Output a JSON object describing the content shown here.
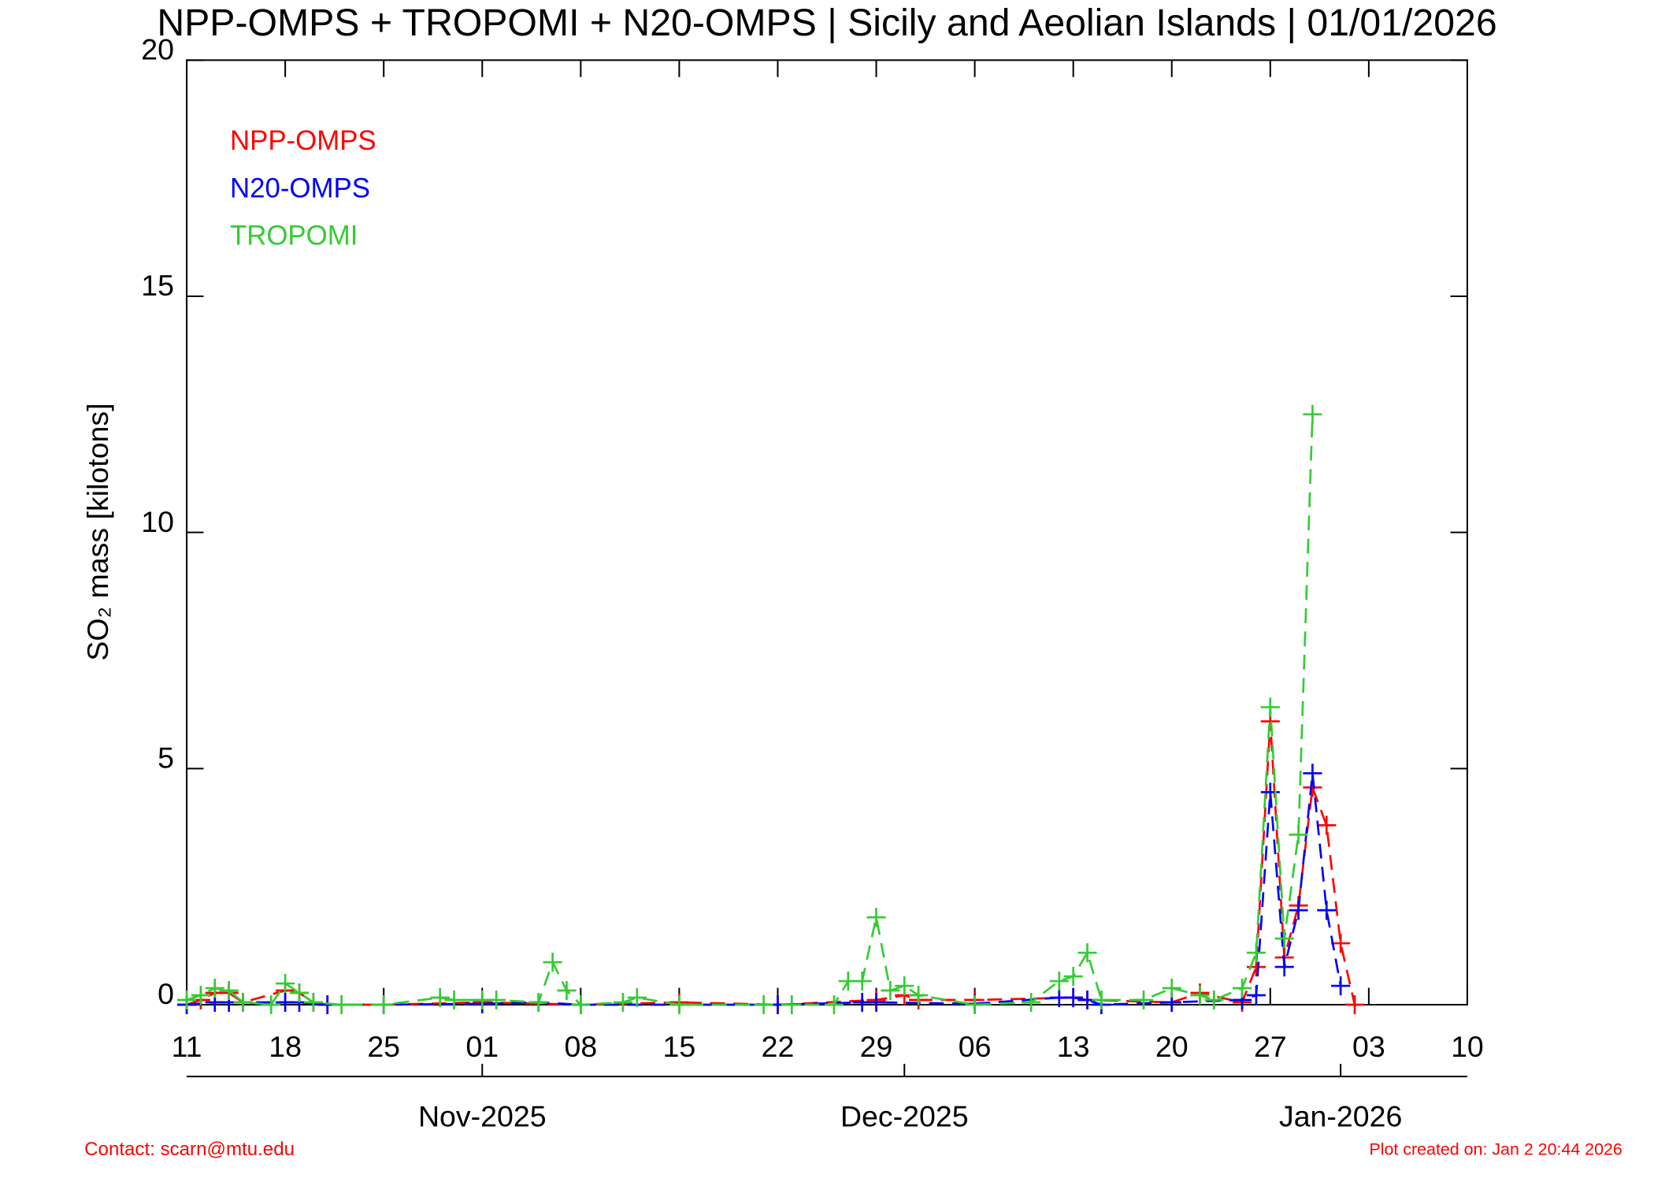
{
  "chart_data": {
    "type": "line",
    "title": "NPP-OMPS + TROPOMI + N20-OMPS | Sicily and Aeolian Islands | 01/01/2026",
    "y_label": "SO₂ mass [kilotons]",
    "xlim": [
      "2025-10-11",
      "2026-01-10"
    ],
    "xticks": [
      {
        "value": "2025-10-11",
        "label": "11"
      },
      {
        "value": "2025-10-18",
        "label": "18"
      },
      {
        "value": "2025-10-25",
        "label": "25"
      },
      {
        "value": "2025-11-01",
        "label": "01"
      },
      {
        "value": "2025-11-08",
        "label": "08"
      },
      {
        "value": "2025-11-15",
        "label": "15"
      },
      {
        "value": "2025-11-22",
        "label": "22"
      },
      {
        "value": "2025-11-29",
        "label": "29"
      },
      {
        "value": "2025-12-06",
        "label": "06"
      },
      {
        "value": "2025-12-13",
        "label": "13"
      },
      {
        "value": "2025-12-20",
        "label": "20"
      },
      {
        "value": "2025-12-27",
        "label": "27"
      },
      {
        "value": "2026-01-03",
        "label": "03"
      },
      {
        "value": "2026-01-10",
        "label": "10"
      }
    ],
    "month_ticks": [
      {
        "value": "2025-11-01",
        "label": "Nov-2025"
      },
      {
        "value": "2025-12-01",
        "label": "Dec-2025"
      },
      {
        "value": "2026-01-01",
        "label": "Jan-2026"
      }
    ],
    "ylim": [
      0,
      20
    ],
    "yticks": [
      0,
      5,
      10,
      15,
      20
    ],
    "legend": "upper left",
    "series": [
      {
        "name": "NPP-OMPS",
        "color": "#ff0000",
        "x": [
          "2025-10-11",
          "2025-10-12",
          "2025-10-13",
          "2025-10-14",
          "2025-10-15",
          "2025-10-18",
          "2025-10-19",
          "2025-10-20",
          "2025-10-21",
          "2025-10-25",
          "2025-11-01",
          "2025-11-08",
          "2025-11-15",
          "2025-11-22",
          "2025-11-29",
          "2025-12-01",
          "2025-12-02",
          "2025-12-06",
          "2025-12-13",
          "2025-12-14",
          "2025-12-20",
          "2025-12-22",
          "2025-12-25",
          "2025-12-26",
          "2025-12-27",
          "2025-12-28",
          "2025-12-29",
          "2025-12-30",
          "2025-12-31",
          "2026-01-01",
          "2026-01-02"
        ],
        "values": [
          0,
          0.1,
          0.25,
          0.25,
          0.05,
          0.3,
          0.25,
          0.05,
          0,
          0,
          0.05,
          0,
          0.05,
          0,
          0.1,
          0.2,
          0.1,
          0.1,
          0.15,
          0.1,
          0.05,
          0.25,
          0.05,
          0.8,
          6.0,
          1.0,
          2.1,
          4.6,
          3.8,
          1.3,
          0
        ]
      },
      {
        "name": "N20-OMPS",
        "color": "#0000ff",
        "x": [
          "2025-10-11",
          "2025-10-13",
          "2025-10-14",
          "2025-10-18",
          "2025-10-19",
          "2025-10-21",
          "2025-10-25",
          "2025-11-01",
          "2025-11-05",
          "2025-11-08",
          "2025-11-22",
          "2025-11-28",
          "2025-11-29",
          "2025-12-06",
          "2025-12-12",
          "2025-12-13",
          "2025-12-14",
          "2025-12-15",
          "2025-12-20",
          "2025-12-25",
          "2025-12-26",
          "2025-12-27",
          "2025-12-28",
          "2025-12-29",
          "2025-12-30",
          "2025-12-31",
          "2026-01-01"
        ],
        "values": [
          0,
          0.05,
          0.05,
          0.05,
          0.05,
          0,
          0,
          0.02,
          0.05,
          0,
          0,
          0.05,
          0.05,
          0.02,
          0.15,
          0.15,
          0.1,
          0,
          0.05,
          0.1,
          0.2,
          4.5,
          0.8,
          2.0,
          4.9,
          2.0,
          0.4
        ]
      },
      {
        "name": "TROPOMI",
        "color": "#33cc33",
        "x": [
          "2025-10-11",
          "2025-10-12",
          "2025-10-13",
          "2025-10-14",
          "2025-10-15",
          "2025-10-17",
          "2025-10-18",
          "2025-10-19",
          "2025-10-20",
          "2025-10-22",
          "2025-10-25",
          "2025-10-29",
          "2025-10-30",
          "2025-11-01",
          "2025-11-02",
          "2025-11-05",
          "2025-11-06",
          "2025-11-07",
          "2025-11-08",
          "2025-11-11",
          "2025-11-12",
          "2025-11-15",
          "2025-11-21",
          "2025-11-23",
          "2025-11-26",
          "2025-11-27",
          "2025-11-28",
          "2025-11-29",
          "2025-11-30",
          "2025-12-01",
          "2025-12-02",
          "2025-12-06",
          "2025-12-10",
          "2025-12-12",
          "2025-12-13",
          "2025-12-14",
          "2025-12-15",
          "2025-12-18",
          "2025-12-20",
          "2025-12-22",
          "2025-12-23",
          "2025-12-25",
          "2025-12-26",
          "2025-12-27",
          "2025-12-28",
          "2025-12-29",
          "2025-12-30"
        ],
        "values": [
          0.1,
          0.2,
          0.35,
          0.3,
          0.05,
          0,
          0.45,
          0.25,
          0.05,
          0,
          0,
          0.15,
          0.1,
          0.1,
          0.1,
          0.05,
          0.9,
          0.3,
          0,
          0.05,
          0.15,
          0,
          0,
          0,
          0,
          0.5,
          0.5,
          1.85,
          0.3,
          0.4,
          0.2,
          0,
          0.05,
          0.5,
          0.6,
          1.1,
          0.1,
          0.1,
          0.35,
          0.2,
          0.1,
          0.35,
          1.1,
          6.3,
          1.4,
          3.6,
          12.5
        ]
      }
    ],
    "footer_left": "Contact: scarn@mtu.edu",
    "footer_right": "Plot created on: Jan  2 20:44 2026"
  }
}
